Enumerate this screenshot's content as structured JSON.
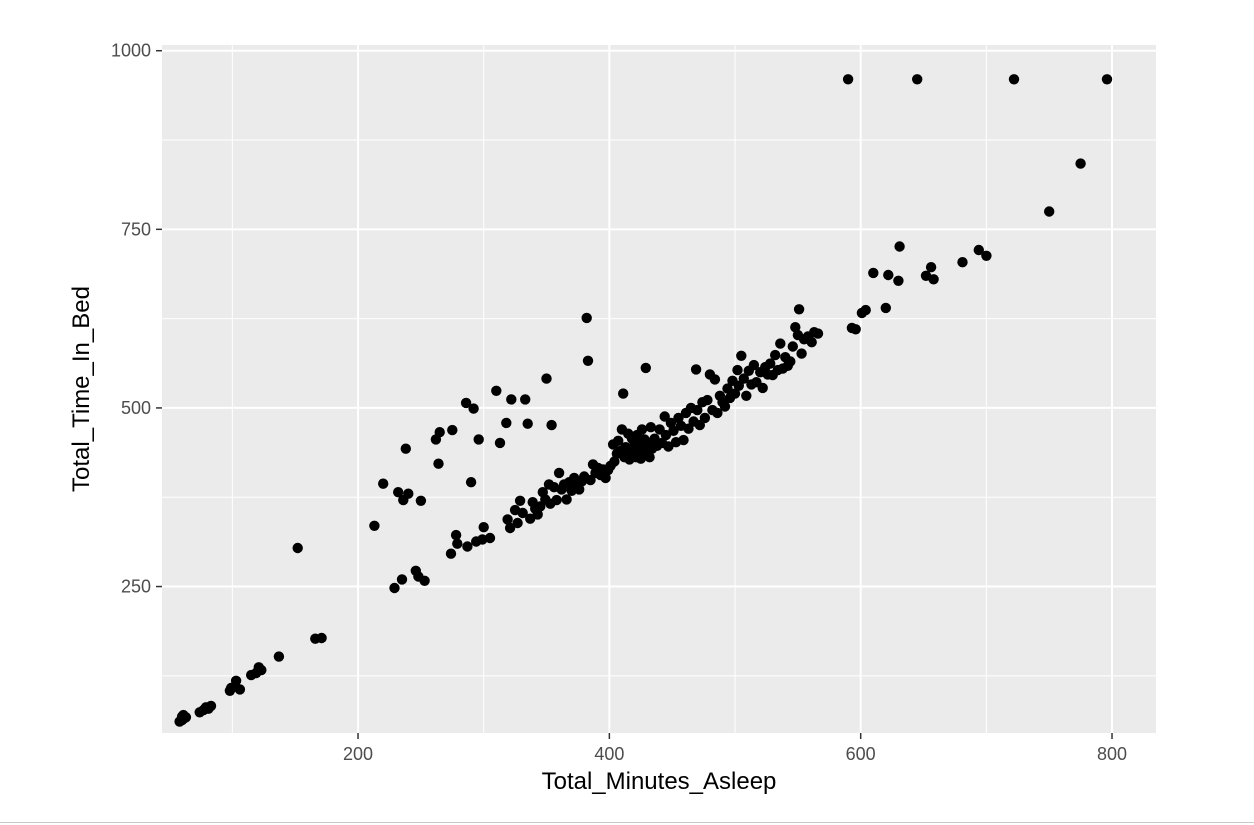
{
  "chart_data": {
    "type": "scatter",
    "title": "",
    "xlabel": "Total_Minutes_Asleep",
    "ylabel": "Total_Time_In_Bed",
    "xlim": [
      44,
      835
    ],
    "ylim": [
      45,
      1008
    ],
    "x_ticks": [
      200,
      400,
      600,
      800
    ],
    "y_ticks": [
      250,
      500,
      750,
      1000
    ],
    "x_tick_labels": [
      "200",
      "400",
      "600",
      "800"
    ],
    "y_tick_labels": [
      "250",
      "500",
      "750",
      "1000"
    ],
    "grid": true,
    "legend": "none",
    "point_color": "#000000",
    "panel_color": "#ebebeb",
    "grid_color": "#ffffff",
    "points": [
      [
        58,
        61
      ],
      [
        60,
        63
      ],
      [
        61,
        65
      ],
      [
        62,
        66
      ],
      [
        60,
        68
      ],
      [
        61,
        70
      ],
      [
        63,
        67
      ],
      [
        74,
        74
      ],
      [
        77,
        77
      ],
      [
        79,
        81
      ],
      [
        81,
        79
      ],
      [
        83,
        83
      ],
      [
        98,
        104
      ],
      [
        99,
        108
      ],
      [
        102,
        110
      ],
      [
        103,
        118
      ],
      [
        106,
        106
      ],
      [
        115,
        126
      ],
      [
        119,
        129
      ],
      [
        121,
        137
      ],
      [
        123,
        133
      ],
      [
        137,
        152
      ],
      [
        152,
        304
      ],
      [
        166,
        177
      ],
      [
        171,
        178
      ],
      [
        213,
        335
      ],
      [
        220,
        394
      ],
      [
        229,
        248
      ],
      [
        232,
        382
      ],
      [
        235,
        260
      ],
      [
        236,
        371
      ],
      [
        238,
        443
      ],
      [
        240,
        380
      ],
      [
        246,
        272
      ],
      [
        248,
        264
      ],
      [
        250,
        370
      ],
      [
        253,
        258
      ],
      [
        262,
        456
      ],
      [
        264,
        422
      ],
      [
        265,
        466
      ],
      [
        274,
        296
      ],
      [
        275,
        469
      ],
      [
        278,
        322
      ],
      [
        279,
        310
      ],
      [
        286,
        507
      ],
      [
        287,
        306
      ],
      [
        290,
        396
      ],
      [
        292,
        499
      ],
      [
        294,
        313
      ],
      [
        296,
        456
      ],
      [
        299,
        316
      ],
      [
        300,
        333
      ],
      [
        305,
        318
      ],
      [
        310,
        524
      ],
      [
        313,
        451
      ],
      [
        318,
        479
      ],
      [
        319,
        344
      ],
      [
        321,
        332
      ],
      [
        322,
        512
      ],
      [
        325,
        357
      ],
      [
        327,
        339
      ],
      [
        329,
        370
      ],
      [
        331,
        353
      ],
      [
        333,
        512
      ],
      [
        335,
        478
      ],
      [
        337,
        345
      ],
      [
        339,
        368
      ],
      [
        341,
        359
      ],
      [
        343,
        351
      ],
      [
        345,
        362
      ],
      [
        347,
        382
      ],
      [
        349,
        372
      ],
      [
        350,
        541
      ],
      [
        352,
        393
      ],
      [
        353,
        366
      ],
      [
        354,
        476
      ],
      [
        356,
        389
      ],
      [
        358,
        371
      ],
      [
        360,
        409
      ],
      [
        362,
        386
      ],
      [
        364,
        393
      ],
      [
        366,
        372
      ],
      [
        368,
        396
      ],
      [
        370,
        384
      ],
      [
        372,
        402
      ],
      [
        374,
        393
      ],
      [
        376,
        386
      ],
      [
        378,
        397
      ],
      [
        380,
        404
      ],
      [
        382,
        626
      ],
      [
        383,
        566
      ],
      [
        385,
        399
      ],
      [
        387,
        421
      ],
      [
        389,
        409
      ],
      [
        391,
        416
      ],
      [
        393,
        406
      ],
      [
        395,
        414
      ],
      [
        397,
        402
      ],
      [
        399,
        413
      ],
      [
        401,
        419
      ],
      [
        403,
        449
      ],
      [
        404,
        425
      ],
      [
        406,
        436
      ],
      [
        407,
        454
      ],
      [
        409,
        440
      ],
      [
        410,
        470
      ],
      [
        411,
        520
      ],
      [
        412,
        431
      ],
      [
        413,
        445
      ],
      [
        414,
        438
      ],
      [
        415,
        464
      ],
      [
        416,
        428
      ],
      [
        417,
        441
      ],
      [
        418,
        457
      ],
      [
        419,
        436
      ],
      [
        420,
        448
      ],
      [
        421,
        431
      ],
      [
        422,
        462
      ],
      [
        423,
        440
      ],
      [
        424,
        453
      ],
      [
        425,
        429
      ],
      [
        426,
        470
      ],
      [
        427,
        446
      ],
      [
        428,
        456
      ],
      [
        429,
        556
      ],
      [
        430,
        438
      ],
      [
        431,
        451
      ],
      [
        432,
        431
      ],
      [
        433,
        473
      ],
      [
        434,
        443
      ],
      [
        436,
        457
      ],
      [
        438,
        447
      ],
      [
        440,
        470
      ],
      [
        442,
        451
      ],
      [
        444,
        488
      ],
      [
        445,
        462
      ],
      [
        447,
        446
      ],
      [
        449,
        479
      ],
      [
        451,
        468
      ],
      [
        453,
        452
      ],
      [
        455,
        486
      ],
      [
        457,
        475
      ],
      [
        459,
        455
      ],
      [
        461,
        493
      ],
      [
        463,
        471
      ],
      [
        465,
        500
      ],
      [
        467,
        481
      ],
      [
        469,
        554
      ],
      [
        470,
        497
      ],
      [
        472,
        476
      ],
      [
        474,
        508
      ],
      [
        476,
        486
      ],
      [
        478,
        511
      ],
      [
        480,
        547
      ],
      [
        482,
        497
      ],
      [
        484,
        540
      ],
      [
        486,
        493
      ],
      [
        488,
        517
      ],
      [
        490,
        508
      ],
      [
        492,
        502
      ],
      [
        494,
        527
      ],
      [
        496,
        514
      ],
      [
        498,
        538
      ],
      [
        500,
        520
      ],
      [
        502,
        553
      ],
      [
        503,
        531
      ],
      [
        505,
        573
      ],
      [
        507,
        541
      ],
      [
        509,
        517
      ],
      [
        511,
        552
      ],
      [
        513,
        533
      ],
      [
        515,
        560
      ],
      [
        517,
        536
      ],
      [
        520,
        550
      ],
      [
        522,
        528
      ],
      [
        524,
        557
      ],
      [
        526,
        547
      ],
      [
        528,
        562
      ],
      [
        530,
        546
      ],
      [
        532,
        574
      ],
      [
        534,
        553
      ],
      [
        536,
        590
      ],
      [
        538,
        555
      ],
      [
        540,
        571
      ],
      [
        542,
        559
      ],
      [
        544,
        565
      ],
      [
        546,
        586
      ],
      [
        548,
        613
      ],
      [
        550,
        602
      ],
      [
        551,
        638
      ],
      [
        553,
        576
      ],
      [
        555,
        596
      ],
      [
        558,
        600
      ],
      [
        561,
        592
      ],
      [
        563,
        606
      ],
      [
        566,
        604
      ],
      [
        590,
        960
      ],
      [
        593,
        612
      ],
      [
        596,
        610
      ],
      [
        601,
        633
      ],
      [
        604,
        637
      ],
      [
        610,
        689
      ],
      [
        620,
        640
      ],
      [
        622,
        686
      ],
      [
        630,
        678
      ],
      [
        631,
        726
      ],
      [
        645,
        960
      ],
      [
        652,
        685
      ],
      [
        656,
        697
      ],
      [
        658,
        680
      ],
      [
        681,
        704
      ],
      [
        694,
        721
      ],
      [
        700,
        713
      ],
      [
        722,
        960
      ],
      [
        750,
        775
      ],
      [
        775,
        842
      ],
      [
        796,
        960
      ]
    ]
  }
}
